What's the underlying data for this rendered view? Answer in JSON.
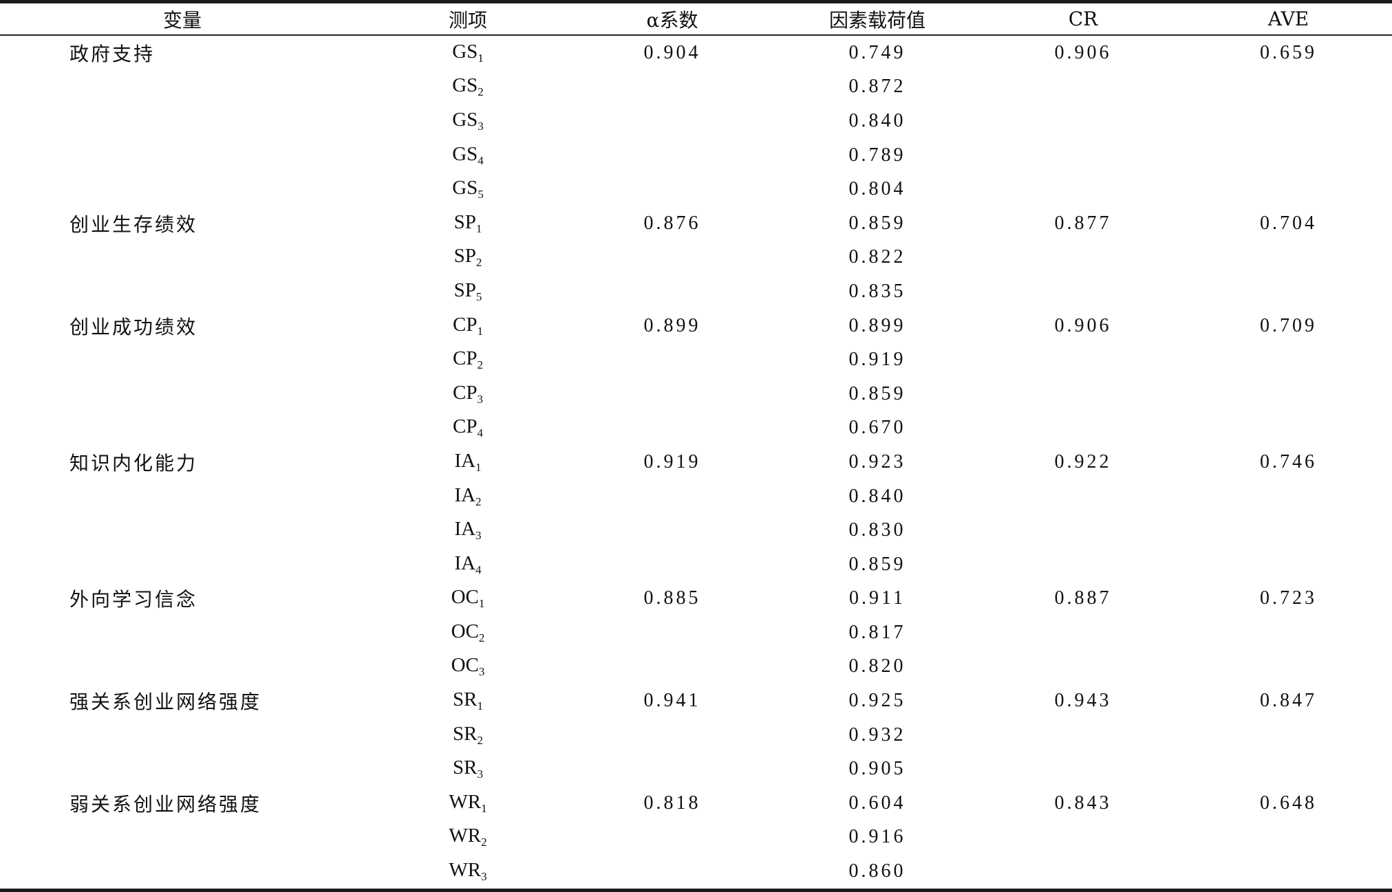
{
  "headers": {
    "variable": "变量",
    "item": "测项",
    "alpha": "α系数",
    "loading": "因素载荷值",
    "cr": "CR",
    "ave": "AVE"
  },
  "groups": [
    {
      "variable": "政府支持",
      "alpha": "0.904",
      "cr": "0.906",
      "ave": "0.659",
      "items": [
        {
          "code": "GS",
          "sub": "1",
          "loading": "0.749"
        },
        {
          "code": "GS",
          "sub": "2",
          "loading": "0.872"
        },
        {
          "code": "GS",
          "sub": "3",
          "loading": "0.840"
        },
        {
          "code": "GS",
          "sub": "4",
          "loading": "0.789"
        },
        {
          "code": "GS",
          "sub": "5",
          "loading": "0.804"
        }
      ]
    },
    {
      "variable": "创业生存绩效",
      "alpha": "0.876",
      "cr": "0.877",
      "ave": "0.704",
      "items": [
        {
          "code": "SP",
          "sub": "1",
          "loading": "0.859"
        },
        {
          "code": "SP",
          "sub": "2",
          "loading": "0.822"
        },
        {
          "code": "SP",
          "sub": "5",
          "loading": "0.835"
        }
      ]
    },
    {
      "variable": "创业成功绩效",
      "alpha": "0.899",
      "cr": "0.906",
      "ave": "0.709",
      "items": [
        {
          "code": "CP",
          "sub": "1",
          "loading": "0.899"
        },
        {
          "code": "CP",
          "sub": "2",
          "loading": "0.919"
        },
        {
          "code": "CP",
          "sub": "3",
          "loading": "0.859"
        },
        {
          "code": "CP",
          "sub": "4",
          "loading": "0.670"
        }
      ]
    },
    {
      "variable": "知识内化能力",
      "alpha": "0.919",
      "cr": "0.922",
      "ave": "0.746",
      "items": [
        {
          "code": "IA",
          "sub": "1",
          "loading": "0.923"
        },
        {
          "code": "IA",
          "sub": "2",
          "loading": "0.840"
        },
        {
          "code": "IA",
          "sub": "3",
          "loading": "0.830"
        },
        {
          "code": "IA",
          "sub": "4",
          "loading": "0.859"
        }
      ]
    },
    {
      "variable": "外向学习信念",
      "alpha": "0.885",
      "cr": "0.887",
      "ave": "0.723",
      "items": [
        {
          "code": "OC",
          "sub": "1",
          "loading": "0.911"
        },
        {
          "code": "OC",
          "sub": "2",
          "loading": "0.817"
        },
        {
          "code": "OC",
          "sub": "3",
          "loading": "0.820"
        }
      ]
    },
    {
      "variable": "强关系创业网络强度",
      "alpha": "0.941",
      "cr": "0.943",
      "ave": "0.847",
      "items": [
        {
          "code": "SR",
          "sub": "1",
          "loading": "0.925"
        },
        {
          "code": "SR",
          "sub": "2",
          "loading": "0.932"
        },
        {
          "code": "SR",
          "sub": "3",
          "loading": "0.905"
        }
      ]
    },
    {
      "variable": "弱关系创业网络强度",
      "alpha": "0.818",
      "cr": "0.843",
      "ave": "0.648",
      "items": [
        {
          "code": "WR",
          "sub": "1",
          "loading": "0.604"
        },
        {
          "code": "WR",
          "sub": "2",
          "loading": "0.916"
        },
        {
          "code": "WR",
          "sub": "3",
          "loading": "0.860"
        }
      ]
    }
  ]
}
